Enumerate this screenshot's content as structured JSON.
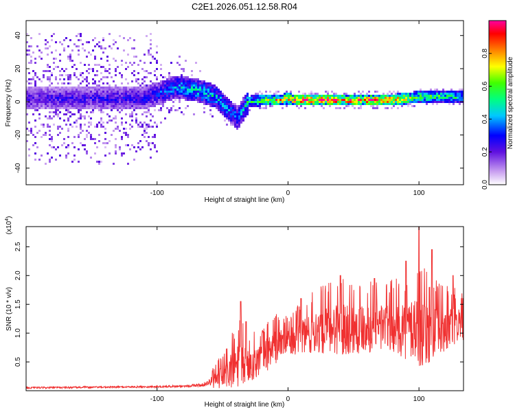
{
  "chart_data": [
    {
      "type": "heatmap",
      "title": "C2E1.2026.051.12.58.R04",
      "xlabel": "Height of straight line (km)",
      "ylabel": "Frequency (Hz)",
      "xlim": [
        -200,
        134
      ],
      "ylim": [
        -50,
        49
      ],
      "xticks": [
        -100,
        0,
        100
      ],
      "xtick_labels": [
        "-100",
        "0",
        "100"
      ],
      "yticks": [
        -40,
        -20,
        0,
        20,
        40
      ],
      "ytick_labels": [
        "-40",
        "-20",
        "0",
        "20",
        "40"
      ],
      "colorbar": {
        "label": "Normalized spectral amplitude",
        "range": [
          0,
          1
        ],
        "ticks": [
          0.0,
          0.2,
          0.4,
          0.6,
          0.8
        ],
        "tick_labels": [
          "0.0",
          "0.2",
          "0.4",
          "0.6",
          "0.8"
        ]
      },
      "ridge": {
        "description_points_x": [
          -200,
          -110,
          -85,
          -70,
          -55,
          -45,
          -38,
          -33,
          -30,
          -20,
          -10,
          -5,
          0,
          5,
          10,
          40,
          80,
          100,
          115,
          134
        ],
        "center_freq_hz": [
          2,
          2,
          9,
          7,
          3,
          -5,
          -10,
          -3,
          0,
          1,
          1,
          1,
          2,
          1,
          1,
          1,
          1,
          3,
          3,
          3
        ],
        "peak_amplitude": [
          0.25,
          0.3,
          0.45,
          0.5,
          0.5,
          0.45,
          0.4,
          0.5,
          0.6,
          0.7,
          0.85,
          0.9,
          0.85,
          0.95,
          1.0,
          1.0,
          0.95,
          0.7,
          0.65,
          0.6
        ]
      }
    },
    {
      "type": "line",
      "xlabel": "Height of straight line (km)",
      "ylabel": "SNR (10 * v/v)",
      "y_multiplier": "(x10",
      "y_multiplier_exp": "4",
      "y_multiplier_close": ")",
      "xlim": [
        -200,
        134
      ],
      "ylim": [
        0,
        2.85
      ],
      "xticks": [
        -100,
        0,
        100
      ],
      "xtick_labels": [
        "-100",
        "0",
        "100"
      ],
      "yticks": [
        0.5,
        1.0,
        1.5,
        2.0,
        2.5
      ],
      "ytick_labels": [
        "0.5",
        "1.0",
        "1.5",
        "2.0",
        "2.5"
      ],
      "color": "#f03030",
      "envelope_x": [
        -200,
        -150,
        -100,
        -80,
        -65,
        -55,
        -45,
        -36,
        -30,
        -20,
        -10,
        0,
        10,
        20,
        30,
        40,
        50,
        60,
        70,
        80,
        90,
        100,
        110,
        120,
        134
      ],
      "envelope_mean": [
        0.05,
        0.06,
        0.07,
        0.08,
        0.1,
        0.2,
        0.35,
        0.5,
        0.45,
        0.6,
        0.8,
        0.9,
        0.95,
        1.05,
        1.1,
        1.15,
        1.15,
        1.15,
        1.15,
        1.15,
        1.1,
        1.1,
        1.05,
        1.1,
        1.2
      ],
      "envelope_spread": [
        0.03,
        0.03,
        0.03,
        0.04,
        0.06,
        0.2,
        0.45,
        0.6,
        0.4,
        0.4,
        0.45,
        0.3,
        0.45,
        0.55,
        0.6,
        0.65,
        0.65,
        0.6,
        0.6,
        0.6,
        0.7,
        0.9,
        0.7,
        0.6,
        0.4
      ],
      "peaks": [
        {
          "x": -36,
          "y": 1.55
        },
        {
          "x": -32,
          "y": 1.2
        },
        {
          "x": 10,
          "y": 1.6
        },
        {
          "x": 40,
          "y": 2.0
        },
        {
          "x": 66,
          "y": 1.95
        },
        {
          "x": 90,
          "y": 2.25
        },
        {
          "x": 100,
          "y": 2.85
        },
        {
          "x": 110,
          "y": 2.45
        },
        {
          "x": 126,
          "y": 2.0
        }
      ]
    }
  ]
}
